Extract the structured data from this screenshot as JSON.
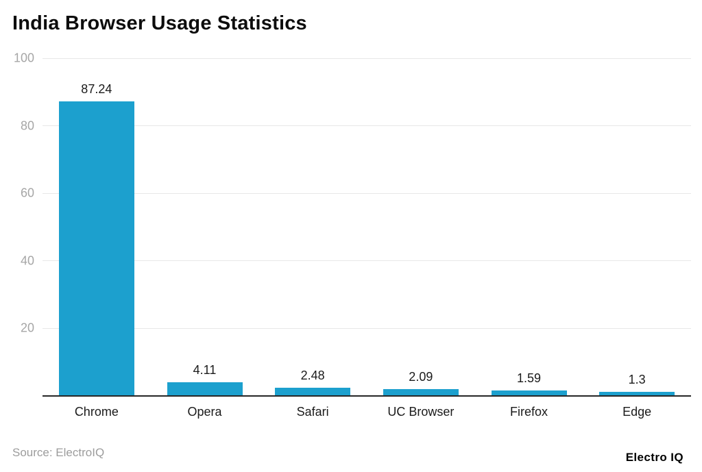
{
  "header": {
    "title": "India Browser Usage Statistics"
  },
  "footer": {
    "source": "Source: ElectroIQ",
    "brand": "Electro IQ"
  },
  "colors": {
    "bar": "#1CA0CE",
    "gridline": "#e7e7e7",
    "axis_line": "#262626",
    "tick_label": "#a6a6a6",
    "value_label": "#1a1a1a",
    "background": "#ffffff"
  },
  "chart_data": {
    "type": "bar",
    "title": "India Browser Usage Statistics",
    "categories": [
      "Chrome",
      "Opera",
      "Safari",
      "UC Browser",
      "Firefox",
      "Edge"
    ],
    "values": [
      87.24,
      4.11,
      2.48,
      2.09,
      1.59,
      1.3
    ],
    "value_labels": [
      "87.24",
      "4.11",
      "2.48",
      "2.09",
      "1.59",
      "1.3"
    ],
    "xlabel": "",
    "ylabel": "",
    "ylim": [
      0,
      100
    ],
    "yticks": [
      20,
      40,
      60,
      80,
      100
    ],
    "grid": "horizontal",
    "legend": "none",
    "bar_color": "#1CA0CE"
  }
}
